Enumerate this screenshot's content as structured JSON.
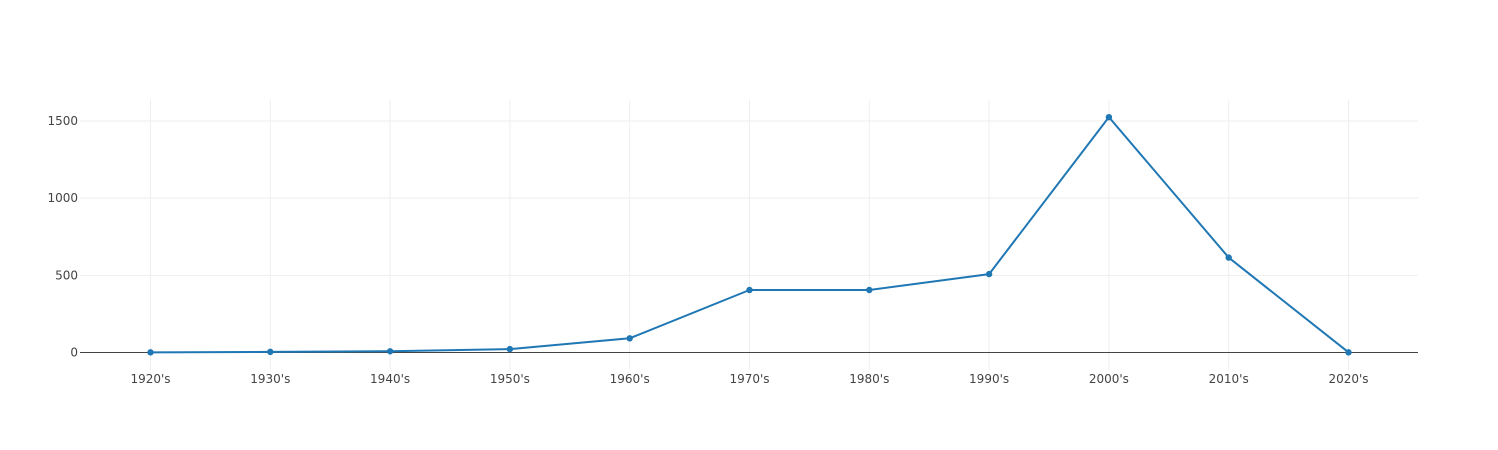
{
  "chart_data": {
    "type": "line",
    "title": "",
    "xlabel": "",
    "ylabel": "",
    "categories": [
      "1920's",
      "1930's",
      "1940's",
      "1950's",
      "1960's",
      "1970's",
      "1980's",
      "1990's",
      "2000's",
      "2010's",
      "2020's"
    ],
    "series": [
      {
        "values": [
          1,
          4,
          8,
          22,
          92,
          405,
          405,
          508,
          1525,
          615,
          1
        ]
      }
    ],
    "ylim": [
      -40,
      1630
    ],
    "yticks": [
      0,
      500,
      1000,
      1500
    ],
    "grid": true,
    "legend": "none",
    "colors": {
      "series": "#1f77b4",
      "grid": "#eeeeee",
      "zeroline": "#444444",
      "text": "#444444"
    }
  }
}
